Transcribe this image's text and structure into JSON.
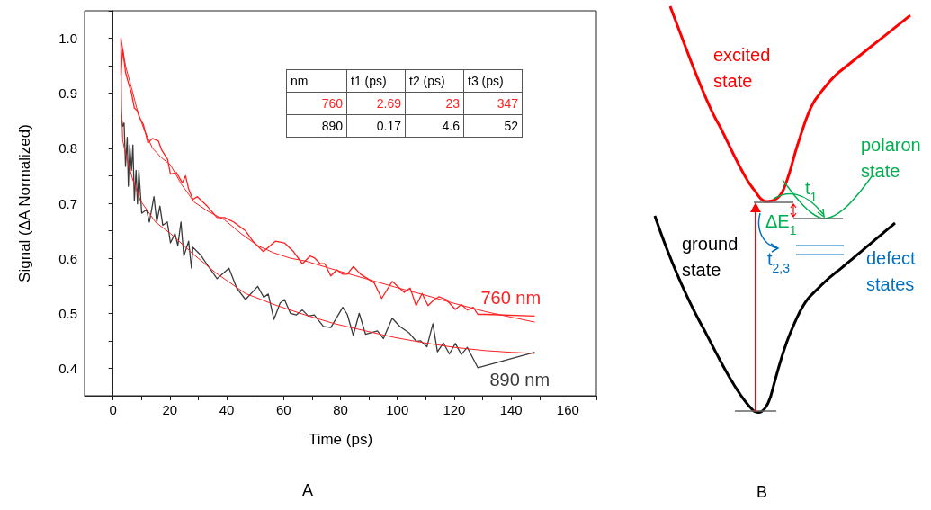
{
  "chart_data": [
    {
      "type": "line",
      "xlabel": "Time (ps)",
      "ylabel": "Signal (ΔA Normalized)",
      "marker": "none",
      "xlim": [
        -10,
        170
      ],
      "ylim": [
        0.35,
        1.05
      ],
      "xticks": [
        {
          "value": -10,
          "label": null
        },
        0,
        {
          "value": 10,
          "label": null
        },
        20,
        {
          "value": 30,
          "label": null
        },
        40,
        {
          "value": 50,
          "label": null
        },
        60,
        {
          "value": 70,
          "label": null
        },
        80,
        {
          "value": 90,
          "label": null
        },
        100,
        {
          "value": 110,
          "label": null
        },
        120,
        {
          "value": 130,
          "label": null
        },
        140,
        {
          "value": 150,
          "label": null
        },
        160,
        {
          "value": 170,
          "label": null
        }
      ],
      "yticks": [
        {
          "value": 0.35,
          "label": null
        },
        0.4,
        {
          "value": 0.45,
          "label": null
        },
        0.5,
        {
          "value": 0.55,
          "label": null
        },
        0.6,
        {
          "value": 0.65,
          "label": null
        },
        0.7,
        {
          "value": 0.75,
          "label": null
        },
        0.8,
        {
          "value": 0.85,
          "label": null
        },
        0.9,
        {
          "value": 0.95,
          "label": null
        },
        {
          "value": 1,
          "label": "1.0"
        },
        {
          "value": 1.05,
          "label": null
        }
      ],
      "series": [
        {
          "name": "760 nm",
          "color": "#ff2020",
          "x": [
            2.8,
            2.8,
            3.4,
            4.4,
            5.4,
            6.5,
            7.5,
            8.6,
            9.2,
            10.7,
            12.3,
            13.9,
            16.0,
            17.1,
            19.2,
            20.2,
            22.3,
            24.4,
            25.5,
            26.6,
            28.1,
            29.7,
            32.9,
            36.6,
            39.2,
            42.4,
            46.6,
            49.2,
            52.9,
            57.1,
            60.3,
            63.5,
            66.6,
            69.3,
            70.8,
            72.9,
            74.5,
            76.6,
            78.7,
            80.8,
            82.4,
            84.5,
            87.1,
            91.9,
            94.5,
            98.2,
            102.4,
            104.5,
            106.6,
            108.7,
            110.8,
            113.0,
            114.6,
            117.2,
            120.4,
            122.5,
            124.6,
            126.7,
            128.3,
            131.0,
            148.3
          ],
          "values": [
            1.0,
            0.933,
            0.98,
            0.938,
            0.919,
            0.9,
            0.873,
            0.868,
            0.857,
            0.843,
            0.81,
            0.818,
            0.813,
            0.797,
            0.78,
            0.753,
            0.756,
            0.737,
            0.75,
            0.726,
            0.707,
            0.712,
            0.696,
            0.674,
            0.674,
            0.666,
            0.65,
            0.631,
            0.612,
            0.631,
            0.628,
            0.612,
            0.59,
            0.604,
            0.601,
            0.59,
            0.59,
            0.568,
            0.579,
            0.571,
            0.571,
            0.585,
            0.571,
            0.555,
            0.527,
            0.558,
            0.538,
            0.546,
            0.514,
            0.536,
            0.514,
            0.525,
            0.53,
            0.525,
            0.507,
            0.516,
            0.506,
            0.511,
            0.498,
            0.498,
            0.495
          ]
        },
        {
          "color": "#ff2020",
          "x": [
            2.8,
            4.4,
            6.5,
            8.6,
            11.0,
            13.9,
            17.0,
            20.2,
            24.0,
            28.6,
            33.5,
            39.2,
            45.0,
            50.9,
            56.5,
            62.4,
            67.7,
            78.0,
            88.8,
            99.0,
            109.8,
            120.0,
            131.0,
            140.0,
            148.3
          ],
          "values": [
            1.0,
            0.95,
            0.91,
            0.868,
            0.833,
            0.8,
            0.783,
            0.77,
            0.735,
            0.702,
            0.685,
            0.67,
            0.645,
            0.623,
            0.61,
            0.6,
            0.595,
            0.579,
            0.563,
            0.548,
            0.533,
            0.518,
            0.503,
            0.493,
            0.484
          ]
        },
        {
          "name": "890 nm",
          "color": "#3a3a3a",
          "x": [
            2.8,
            3.4,
            3.9,
            4.4,
            5.0,
            5.4,
            5.9,
            6.5,
            7.0,
            7.5,
            8.1,
            8.6,
            9.1,
            10.1,
            11.8,
            12.8,
            14.4,
            15.4,
            16.5,
            17.5,
            19.1,
            20.2,
            21.8,
            22.8,
            23.9,
            24.9,
            26.6,
            27.6,
            28.1,
            30.8,
            32.9,
            36.6,
            40.8,
            43.5,
            46.6,
            50.9,
            53.0,
            54.6,
            56.6,
            58.8,
            60.3,
            62.4,
            64.5,
            66.6,
            68.7,
            70.8,
            74.0,
            76.6,
            80.8,
            82.4,
            84.5,
            86.6,
            88.8,
            93.0,
            95.1,
            98.2,
            100.9,
            104.0,
            106.7,
            108.2,
            110.4,
            112.5,
            114.1,
            116.2,
            118.3,
            120.4,
            122.5,
            124.6,
            128.3,
            148.3
          ],
          "values": [
            0.86,
            0.84,
            0.846,
            0.767,
            0.82,
            0.731,
            0.806,
            0.76,
            0.806,
            0.704,
            0.76,
            0.699,
            0.76,
            0.682,
            0.688,
            0.666,
            0.712,
            0.666,
            0.695,
            0.66,
            0.666,
            0.628,
            0.645,
            0.623,
            0.666,
            0.604,
            0.631,
            0.582,
            0.62,
            0.606,
            0.59,
            0.563,
            0.582,
            0.546,
            0.525,
            0.549,
            0.529,
            0.535,
            0.489,
            0.519,
            0.525,
            0.5,
            0.497,
            0.506,
            0.495,
            0.497,
            0.476,
            0.474,
            0.511,
            0.498,
            0.46,
            0.5,
            0.462,
            0.468,
            0.454,
            0.491,
            0.476,
            0.465,
            0.449,
            0.45,
            0.439,
            0.481,
            0.43,
            0.446,
            0.426,
            0.445,
            0.425,
            0.438,
            0.401,
            0.429
          ]
        },
        {
          "color": "#ff2020",
          "x": [
            2.8,
            3.0,
            3.4,
            4.4,
            7.0,
            9.6,
            14.9,
            20.2,
            28.6,
            36.0,
            46.6,
            57.1,
            67.6,
            78.0,
            88.8,
            99.0,
            109.8,
            120.0,
            131.0,
            140.0,
            148.3
          ],
          "values": [
            1.0,
            0.878,
            0.815,
            0.79,
            0.742,
            0.705,
            0.666,
            0.645,
            0.606,
            0.574,
            0.536,
            0.515,
            0.497,
            0.481,
            0.468,
            0.456,
            0.446,
            0.438,
            0.432,
            0.429,
            0.427
          ]
        }
      ],
      "annotations": [
        "nm",
        "t1 (ps)",
        "t2 (ps)",
        "t3 (ps)",
        "760",
        "2.69",
        "23",
        "347",
        "890",
        "0.17",
        "4.6",
        "52",
        "A"
      ]
    },
    {
      "type": "other",
      "annotations": [
        "excited state",
        "polaron state",
        "ground state",
        "defect states",
        "t$_{1}$",
        "ΔE$_{1}$",
        "t$_{2,3}$",
        "B"
      ]
    }
  ]
}
